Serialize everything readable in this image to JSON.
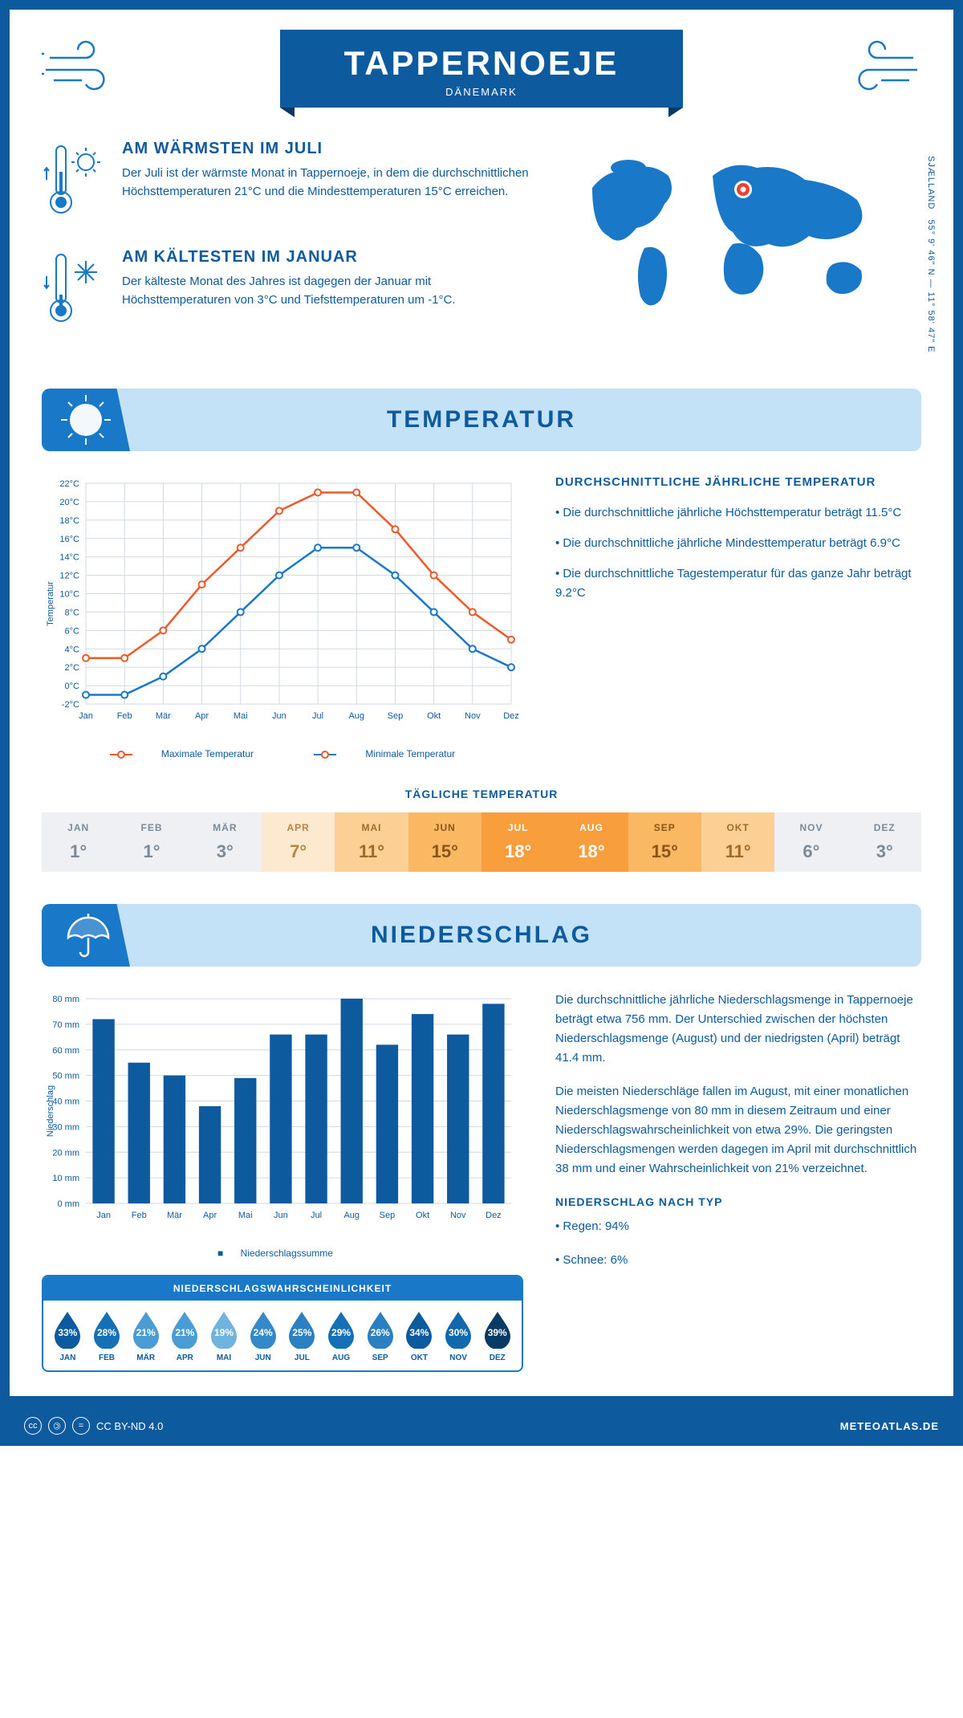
{
  "header": {
    "title": "TAPPERNOEJE",
    "subtitle": "DÄNEMARK"
  },
  "coords": "55° 9' 46\" N — 11° 58' 47\" E",
  "region_label": "SJÆLLAND",
  "facts": {
    "warm": {
      "title": "AM WÄRMSTEN IM JULI",
      "text": "Der Juli ist der wärmste Monat in Tappernoeje, in dem die durchschnittlichen Höchsttemperaturen 21°C und die Mindesttemperaturen 15°C erreichen."
    },
    "cold": {
      "title": "AM KÄLTESTEN IM JANUAR",
      "text": "Der kälteste Monat des Jahres ist dagegen der Januar mit Höchsttemperaturen von 3°C und Tiefsttemperaturen um -1°C."
    }
  },
  "sections": {
    "temp": "TEMPERATUR",
    "precip": "NIEDERSCHLAG"
  },
  "months": [
    "Jan",
    "Feb",
    "Mär",
    "Apr",
    "Mai",
    "Jun",
    "Jul",
    "Aug",
    "Sep",
    "Okt",
    "Nov",
    "Dez"
  ],
  "months_upper": [
    "JAN",
    "FEB",
    "MÄR",
    "APR",
    "MAI",
    "JUN",
    "JUL",
    "AUG",
    "SEP",
    "OKT",
    "NOV",
    "DEZ"
  ],
  "temp_chart": {
    "type": "line",
    "ylabel": "Temperatur",
    "ylim": [
      -2,
      22
    ],
    "ytick_step": 2,
    "max_series": {
      "label": "Maximale Temperatur",
      "color": "#ef5a2a",
      "values": [
        3,
        3,
        6,
        11,
        15,
        19,
        21,
        21,
        17,
        12,
        8,
        5
      ]
    },
    "min_series": {
      "label": "Minimale Temperatur",
      "color": "#1978c8",
      "values": [
        -1,
        -1,
        1,
        4,
        8,
        12,
        15,
        15,
        12,
        8,
        4,
        2
      ]
    },
    "grid_color": "#d0dae5",
    "bg": "#ffffff",
    "line_width": 2.5,
    "marker": "circle"
  },
  "temp_info": {
    "title": "DURCHSCHNITTLICHE JÄHRLICHE TEMPERATUR",
    "bullets": [
      "• Die durchschnittliche jährliche Höchsttemperatur beträgt 11.5°C",
      "• Die durchschnittliche jährliche Mindesttemperatur beträgt 6.9°C",
      "• Die durchschnittliche Tagestemperatur für das ganze Jahr beträgt 9.2°C"
    ]
  },
  "daily": {
    "title": "TÄGLICHE TEMPERATUR",
    "values": [
      1,
      1,
      3,
      7,
      11,
      15,
      18,
      18,
      15,
      11,
      6,
      3
    ],
    "bg_colors": [
      "#eef0f3",
      "#eef0f3",
      "#eef0f3",
      "#fde9cf",
      "#fcd095",
      "#fbb863",
      "#f89e3c",
      "#f89e3c",
      "#fbb863",
      "#fcd095",
      "#eef0f3",
      "#eef0f3"
    ],
    "text_colors": [
      "#7a8a9a",
      "#7a8a9a",
      "#7a8a9a",
      "#b8873f",
      "#a06a27",
      "#8a5518",
      "#ffffff",
      "#ffffff",
      "#8a5518",
      "#a06a27",
      "#7a8a9a",
      "#7a8a9a"
    ]
  },
  "precip_chart": {
    "type": "bar",
    "ylabel": "Niederschlag",
    "ylim": [
      0,
      80
    ],
    "ytick_step": 10,
    "values": [
      72,
      55,
      50,
      38,
      49,
      66,
      66,
      80,
      62,
      74,
      66,
      78
    ],
    "bar_color": "#0d5a9e",
    "grid_color": "#d0dae5",
    "legend": "Niederschlagssumme"
  },
  "precip_text": {
    "p1": "Die durchschnittliche jährliche Niederschlagsmenge in Tappernoeje beträgt etwa 756 mm. Der Unterschied zwischen der höchsten Niederschlagsmenge (August) und der niedrigsten (April) beträgt 41.4 mm.",
    "p2": "Die meisten Niederschläge fallen im August, mit einer monatlichen Niederschlagsmenge von 80 mm in diesem Zeitraum und einer Niederschlagswahrscheinlichkeit von etwa 29%. Die geringsten Niederschlagsmengen werden dagegen im April mit durchschnittlich 38 mm und einer Wahrscheinlichkeit von 21% verzeichnet.",
    "type_title": "NIEDERSCHLAG NACH TYP",
    "types": [
      "• Regen: 94%",
      "• Schnee: 6%"
    ]
  },
  "prob": {
    "title": "NIEDERSCHLAGSWAHRSCHEINLICHKEIT",
    "values": [
      33,
      28,
      21,
      21,
      19,
      24,
      25,
      29,
      26,
      34,
      30,
      39
    ],
    "colors": [
      "#0d5a9e",
      "#1670b5",
      "#4a9dd4",
      "#4a9dd4",
      "#6fb3de",
      "#3489c8",
      "#2b80c1",
      "#1670b5",
      "#2b80c1",
      "#0d5a9e",
      "#1169ad",
      "#083a65"
    ]
  },
  "footer": {
    "license": "CC BY-ND 4.0",
    "site": "METEOATLAS.DE"
  }
}
